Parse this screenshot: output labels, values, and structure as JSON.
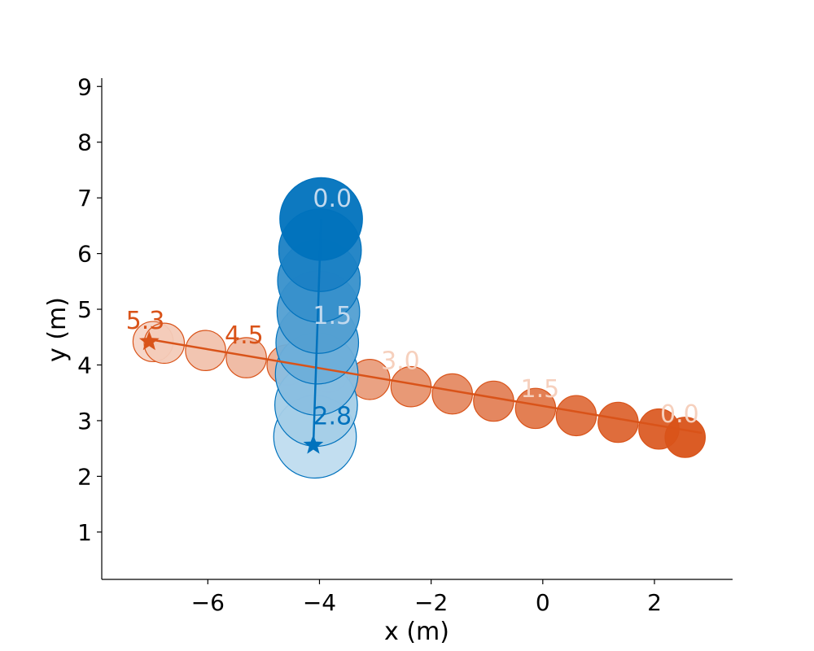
{
  "chart_data": {
    "type": "scatter",
    "title": "",
    "xlabel": "x (m)",
    "ylabel": "y (m)",
    "xlim": [
      -7.9,
      3.4
    ],
    "ylim": [
      0.15,
      9.15
    ],
    "xticks": [
      -6,
      -4,
      -2,
      0,
      2
    ],
    "yticks": [
      1,
      2,
      3,
      4,
      5,
      6,
      7,
      8,
      9
    ],
    "xtick_labels": [
      "−6",
      "−4",
      "−2",
      "0",
      "2"
    ],
    "ytick_labels": [
      "1",
      "2",
      "3",
      "4",
      "5",
      "6",
      "7",
      "8",
      "9"
    ],
    "grid": false,
    "series": [
      {
        "color": "#d95319",
        "radius_m": 0.36,
        "points": [
          {
            "x": 2.55,
            "y": 2.7
          },
          {
            "x": 2.08,
            "y": 2.85
          },
          {
            "x": 1.35,
            "y": 2.97
          },
          {
            "x": 0.6,
            "y": 3.09
          },
          {
            "x": -0.13,
            "y": 3.22
          },
          {
            "x": -0.88,
            "y": 3.35
          },
          {
            "x": -1.62,
            "y": 3.48
          },
          {
            "x": -2.36,
            "y": 3.61
          },
          {
            "x": -3.1,
            "y": 3.74
          },
          {
            "x": -3.84,
            "y": 3.87
          },
          {
            "x": -4.58,
            "y": 4.0
          },
          {
            "x": -5.31,
            "y": 4.13
          },
          {
            "x": -6.04,
            "y": 4.26
          },
          {
            "x": -6.78,
            "y": 4.39
          },
          {
            "x": -6.98,
            "y": 4.42
          }
        ],
        "path": [
          [
            2.85,
            2.78
          ],
          [
            -7.05,
            4.46
          ]
        ],
        "goal": {
          "x": -7.05,
          "y": 4.42
        },
        "time_labels": [
          {
            "text": "0.0",
            "x": 2.45,
            "y": 2.97,
            "color": "#f6d0bd"
          },
          {
            "text": "1.5",
            "x": -0.05,
            "y": 3.42,
            "color": "#f6d0bd"
          },
          {
            "text": "3.0",
            "x": -2.55,
            "y": 3.93,
            "color": "#f6d0bd"
          },
          {
            "text": "4.5",
            "x": -5.35,
            "y": 4.39,
            "color": "#d95319"
          },
          {
            "text": "5.3",
            "x": -7.12,
            "y": 4.65,
            "color": "#d95319"
          }
        ]
      },
      {
        "color": "#0072bd",
        "radius_m": 0.74,
        "points": [
          {
            "x": -3.97,
            "y": 6.62
          },
          {
            "x": -3.99,
            "y": 6.06
          },
          {
            "x": -4.01,
            "y": 5.51
          },
          {
            "x": -4.02,
            "y": 4.95
          },
          {
            "x": -4.04,
            "y": 4.4
          },
          {
            "x": -4.05,
            "y": 3.84
          },
          {
            "x": -4.06,
            "y": 3.28
          },
          {
            "x": -4.08,
            "y": 2.71
          }
        ],
        "path": [
          [
            -3.97,
            6.62
          ],
          [
            -4.11,
            2.56
          ]
        ],
        "goal": {
          "x": -4.11,
          "y": 2.56
        },
        "time_labels": [
          {
            "text": "0.0",
            "x": -3.77,
            "y": 6.84,
            "color": "#c2d9ee"
          },
          {
            "text": "1.5",
            "x": -3.77,
            "y": 4.74,
            "color": "#c2d9ee"
          },
          {
            "text": "2.8",
            "x": -3.77,
            "y": 2.93,
            "color": "#0072bd"
          }
        ]
      }
    ]
  }
}
